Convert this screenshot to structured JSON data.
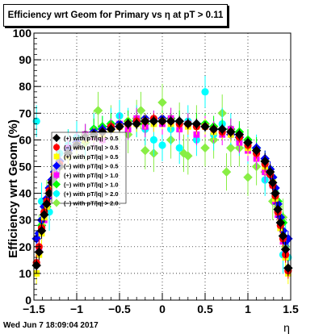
{
  "title": "Efficiency wrt Geom for Primary vs   η at pT > 0.11",
  "footer_date": "Wed Jun  7 18:09:04 2017",
  "chart_data": {
    "type": "scatter",
    "xlabel": "η",
    "ylabel": "Efficiency wrt Geom (%)",
    "xlim": [
      -1.5,
      1.5
    ],
    "ylim": [
      0,
      100
    ],
    "x_ticks": [
      -1.5,
      -1,
      -0.5,
      0,
      0.5,
      1,
      1.5
    ],
    "x_tick_labels": [
      "−1.5",
      "−1",
      "−0.5",
      "0",
      "0.5",
      "1",
      "1.5"
    ],
    "y_ticks": [
      0,
      10,
      20,
      30,
      40,
      50,
      60,
      70,
      80,
      90,
      100
    ],
    "grid": true,
    "legend_position": "left-middle",
    "series": [
      {
        "name": "(+) with pT/|q| > 0.5",
        "color": "#000000",
        "marker": "diamond",
        "x": [
          -1.47,
          -1.44,
          -1.41,
          -1.38,
          -1.35,
          -1.32,
          -1.29,
          -1.26,
          -1.2,
          -1.1,
          -1.0,
          -0.9,
          -0.8,
          -0.7,
          -0.6,
          -0.5,
          -0.4,
          -0.3,
          -0.2,
          -0.1,
          0.0,
          0.1,
          0.2,
          0.3,
          0.4,
          0.5,
          0.6,
          0.7,
          0.8,
          0.9,
          1.0,
          1.1,
          1.2,
          1.26,
          1.29,
          1.32,
          1.35,
          1.38,
          1.41,
          1.44,
          1.47
        ],
        "y": [
          13,
          18,
          26,
          32,
          36,
          40,
          44,
          46,
          50,
          55,
          58,
          61,
          62,
          63,
          64,
          65,
          66,
          66,
          67,
          67,
          67,
          67,
          67,
          66,
          66,
          65,
          64,
          64,
          63,
          62,
          59,
          56,
          52,
          48,
          44,
          40,
          34,
          29,
          24,
          19,
          12
        ],
        "yerr": [
          3,
          3,
          3,
          3,
          3,
          3,
          3,
          3,
          3,
          2,
          2,
          2,
          2,
          2,
          2,
          2,
          2,
          2,
          2,
          2,
          2,
          2,
          2,
          2,
          2,
          2,
          2,
          2,
          2,
          2,
          2,
          2,
          3,
          3,
          3,
          3,
          3,
          3,
          3,
          3,
          3
        ]
      },
      {
        "name": "(−) with pT/|q| > 0.5",
        "color": "#ff0000",
        "marker": "circle",
        "x": [
          -1.47,
          -1.44,
          -1.41,
          -1.38,
          -1.35,
          -1.32,
          -1.29,
          -1.26,
          -1.2,
          -1.1,
          -1.0,
          -0.9,
          -0.8,
          -0.7,
          -0.6,
          -0.5,
          -0.4,
          -0.3,
          -0.2,
          -0.1,
          0.0,
          0.1,
          0.2,
          0.3,
          0.4,
          0.5,
          0.6,
          0.7,
          0.8,
          0.9,
          1.0,
          1.1,
          1.2,
          1.26,
          1.29,
          1.32,
          1.35,
          1.38,
          1.41,
          1.44,
          1.47
        ],
        "y": [
          14,
          20,
          27,
          33,
          37,
          41,
          44,
          47,
          51,
          55,
          58,
          61,
          62,
          63,
          65,
          65,
          66,
          67,
          67,
          68,
          67,
          67,
          66,
          66,
          65,
          65,
          64,
          63,
          63,
          61,
          58,
          55,
          51,
          47,
          43,
          39,
          33,
          28,
          23,
          17,
          11
        ],
        "yerr": [
          3,
          3,
          3,
          3,
          3,
          3,
          3,
          3,
          3,
          2,
          2,
          2,
          2,
          2,
          2,
          2,
          2,
          2,
          2,
          2,
          2,
          2,
          2,
          2,
          2,
          2,
          2,
          2,
          2,
          2,
          2,
          2,
          3,
          3,
          3,
          3,
          3,
          3,
          3,
          3,
          3
        ]
      },
      {
        "name": "(+) with pT/|q| > 0.5",
        "color": "#ffff00",
        "marker": "square",
        "x": [
          -1.47,
          -1.44,
          -1.41,
          -1.38,
          -1.35,
          -1.32,
          -1.29,
          -1.2,
          -1.1,
          -1.0,
          -0.9,
          -0.8,
          -0.7,
          -0.6,
          -0.5,
          -0.4,
          -0.3,
          -0.2,
          -0.1,
          0.0,
          0.1,
          0.2,
          0.3,
          0.4,
          0.5,
          0.6,
          0.7,
          0.8,
          0.9,
          1.0,
          1.1,
          1.2,
          1.29,
          1.32,
          1.35,
          1.38,
          1.41,
          1.44,
          1.47
        ],
        "y": [
          10,
          17,
          25,
          31,
          35,
          40,
          43,
          50,
          54,
          58,
          60,
          62,
          62,
          64,
          65,
          66,
          66,
          67,
          66,
          67,
          66,
          66,
          65,
          65,
          65,
          63,
          63,
          62,
          61,
          57,
          55,
          50,
          44,
          38,
          33,
          27,
          23,
          16,
          10
        ],
        "yerr": [
          4,
          4,
          4,
          4,
          4,
          4,
          4,
          3,
          3,
          3,
          3,
          3,
          3,
          3,
          3,
          3,
          3,
          3,
          3,
          3,
          3,
          3,
          3,
          3,
          3,
          3,
          3,
          3,
          3,
          3,
          3,
          3,
          4,
          4,
          4,
          4,
          4,
          4,
          4
        ]
      },
      {
        "name": "(−) with pT/|q| > 0.5",
        "color": "#0000ff",
        "marker": "diamond",
        "x": [
          -1.47,
          -1.44,
          -1.41,
          -1.38,
          -1.35,
          -1.32,
          -1.29,
          -1.26,
          -1.2,
          -1.1,
          -1.0,
          -0.9,
          -0.8,
          -0.7,
          -0.6,
          -0.5,
          -0.4,
          -0.3,
          -0.2,
          -0.1,
          0.0,
          0.1,
          0.2,
          0.3,
          0.4,
          0.5,
          0.6,
          0.7,
          0.8,
          0.9,
          1.0,
          1.1,
          1.2,
          1.26,
          1.29,
          1.32,
          1.35,
          1.38,
          1.41,
          1.44,
          1.47
        ],
        "y": [
          23,
          25,
          30,
          35,
          38,
          42,
          45,
          48,
          52,
          56,
          59,
          61,
          63,
          64,
          65,
          66,
          66,
          67,
          68,
          67,
          68,
          67,
          67,
          66,
          66,
          65,
          64,
          64,
          62,
          61,
          59,
          57,
          53,
          49,
          46,
          42,
          36,
          31,
          26,
          22,
          23
        ],
        "yerr": [
          3,
          3,
          3,
          3,
          3,
          3,
          3,
          3,
          3,
          2,
          2,
          2,
          2,
          2,
          2,
          2,
          2,
          2,
          2,
          2,
          2,
          2,
          2,
          2,
          2,
          2,
          2,
          2,
          2,
          2,
          2,
          2,
          3,
          3,
          3,
          3,
          3,
          3,
          3,
          3,
          3
        ]
      },
      {
        "name": "(+) with pT/|q| > 1.0",
        "color": "#ff00ff",
        "marker": "square",
        "x": [
          -1.44,
          -1.41,
          -1.38,
          -1.35,
          -1.32,
          -1.29,
          -1.2,
          -1.1,
          -1.0,
          -0.9,
          -0.8,
          -0.7,
          -0.6,
          -0.5,
          -0.4,
          -0.3,
          -0.2,
          -0.1,
          0.0,
          0.1,
          0.2,
          0.3,
          0.4,
          0.5,
          0.6,
          0.7,
          0.8,
          0.9,
          1.0,
          1.1,
          1.2,
          1.29,
          1.32,
          1.35,
          1.38,
          1.41,
          1.44
        ],
        "y": [
          19,
          26,
          30,
          35,
          39,
          43,
          51,
          57,
          59,
          62,
          61,
          60,
          64,
          66,
          64,
          68,
          65,
          67,
          66,
          68,
          64,
          66,
          62,
          65,
          63,
          62,
          64,
          59,
          56,
          53,
          48,
          43,
          37,
          32,
          28,
          22,
          18
        ],
        "yerr": [
          4,
          4,
          4,
          4,
          4,
          4,
          4,
          4,
          4,
          4,
          4,
          4,
          4,
          4,
          4,
          4,
          4,
          4,
          4,
          4,
          4,
          4,
          4,
          4,
          4,
          4,
          4,
          4,
          4,
          4,
          4,
          4,
          4,
          4,
          4,
          4,
          4
        ]
      },
      {
        "name": "(−) with pT/|q| > 1.0",
        "color": "#00ff00",
        "marker": "diamond",
        "x": [
          -1.41,
          -1.35,
          -1.29,
          -1.2,
          -1.1,
          -1.0,
          -0.9,
          -0.8,
          -0.7,
          -0.6,
          -0.5,
          -0.4,
          -0.3,
          -0.2,
          -0.1,
          0.0,
          0.1,
          0.2,
          0.3,
          0.4,
          0.5,
          0.6,
          0.7,
          0.8,
          0.9,
          1.0,
          1.1,
          1.2,
          1.29,
          1.35,
          1.41
        ],
        "y": [
          28,
          35,
          44,
          52,
          56,
          59,
          62,
          64,
          65,
          66,
          66,
          67,
          67,
          66,
          67,
          67,
          68,
          67,
          66,
          66,
          66,
          65,
          64,
          64,
          63,
          60,
          57,
          52,
          46,
          37,
          29
        ],
        "yerr": [
          4,
          4,
          4,
          4,
          4,
          4,
          4,
          4,
          4,
          4,
          4,
          4,
          4,
          4,
          4,
          4,
          4,
          4,
          4,
          4,
          4,
          4,
          4,
          4,
          4,
          4,
          4,
          4,
          4,
          4,
          4
        ]
      },
      {
        "name": "(+) with pT/|q| > 2.0",
        "color": "#00ffff",
        "marker": "circle",
        "x": [
          -1.47,
          -1.41,
          -1.32,
          -1.2,
          -1.1,
          -1.0,
          -0.9,
          -0.8,
          -0.7,
          -0.6,
          -0.5,
          -0.4,
          -0.3,
          -0.2,
          -0.1,
          0.0,
          0.1,
          0.2,
          0.3,
          0.4,
          0.5,
          0.6,
          0.7,
          0.8,
          0.9,
          1.0,
          1.1,
          1.2,
          1.32,
          1.41,
          1.44,
          1.47
        ],
        "y": [
          67,
          37,
          33,
          55,
          58,
          61,
          60,
          64,
          63,
          66,
          69,
          66,
          67,
          64,
          60,
          58,
          64,
          57,
          67,
          60,
          78,
          62,
          66,
          64,
          60,
          57,
          56,
          45,
          40,
          17,
          22,
          16
        ],
        "yerr": [
          6,
          7,
          7,
          6,
          6,
          6,
          6,
          6,
          6,
          6,
          6,
          6,
          6,
          6,
          6,
          6,
          6,
          6,
          6,
          6,
          6,
          6,
          6,
          6,
          6,
          6,
          6,
          6,
          7,
          7,
          7,
          7
        ]
      },
      {
        "name": "(−) with pT/|q| > 2.0",
        "color": "#88ee44",
        "marker": "diamond",
        "x": [
          -1.44,
          -1.35,
          -1.29,
          -1.2,
          -1.1,
          -1.0,
          -0.9,
          -0.8,
          -0.75,
          -0.6,
          -0.5,
          -0.4,
          -0.3,
          -0.25,
          -0.2,
          -0.1,
          0.0,
          0.1,
          0.2,
          0.25,
          0.3,
          0.4,
          0.5,
          0.6,
          0.7,
          0.75,
          0.8,
          0.9,
          1.0,
          1.1,
          1.2,
          1.29,
          1.35,
          1.41,
          1.44
        ],
        "y": [
          25,
          38,
          44,
          50,
          57,
          60,
          59,
          64,
          71,
          66,
          66,
          62,
          68,
          71,
          56,
          55,
          74,
          60,
          67,
          55,
          54,
          66,
          57,
          60,
          70,
          48,
          57,
          57,
          46,
          50,
          48,
          37,
          35,
          31,
          20
        ],
        "yerr": [
          7,
          7,
          7,
          7,
          7,
          7,
          7,
          7,
          7,
          7,
          7,
          7,
          7,
          7,
          7,
          7,
          7,
          7,
          7,
          7,
          7,
          7,
          7,
          7,
          7,
          7,
          7,
          7,
          7,
          7,
          7,
          7,
          7,
          7,
          7
        ]
      }
    ]
  }
}
